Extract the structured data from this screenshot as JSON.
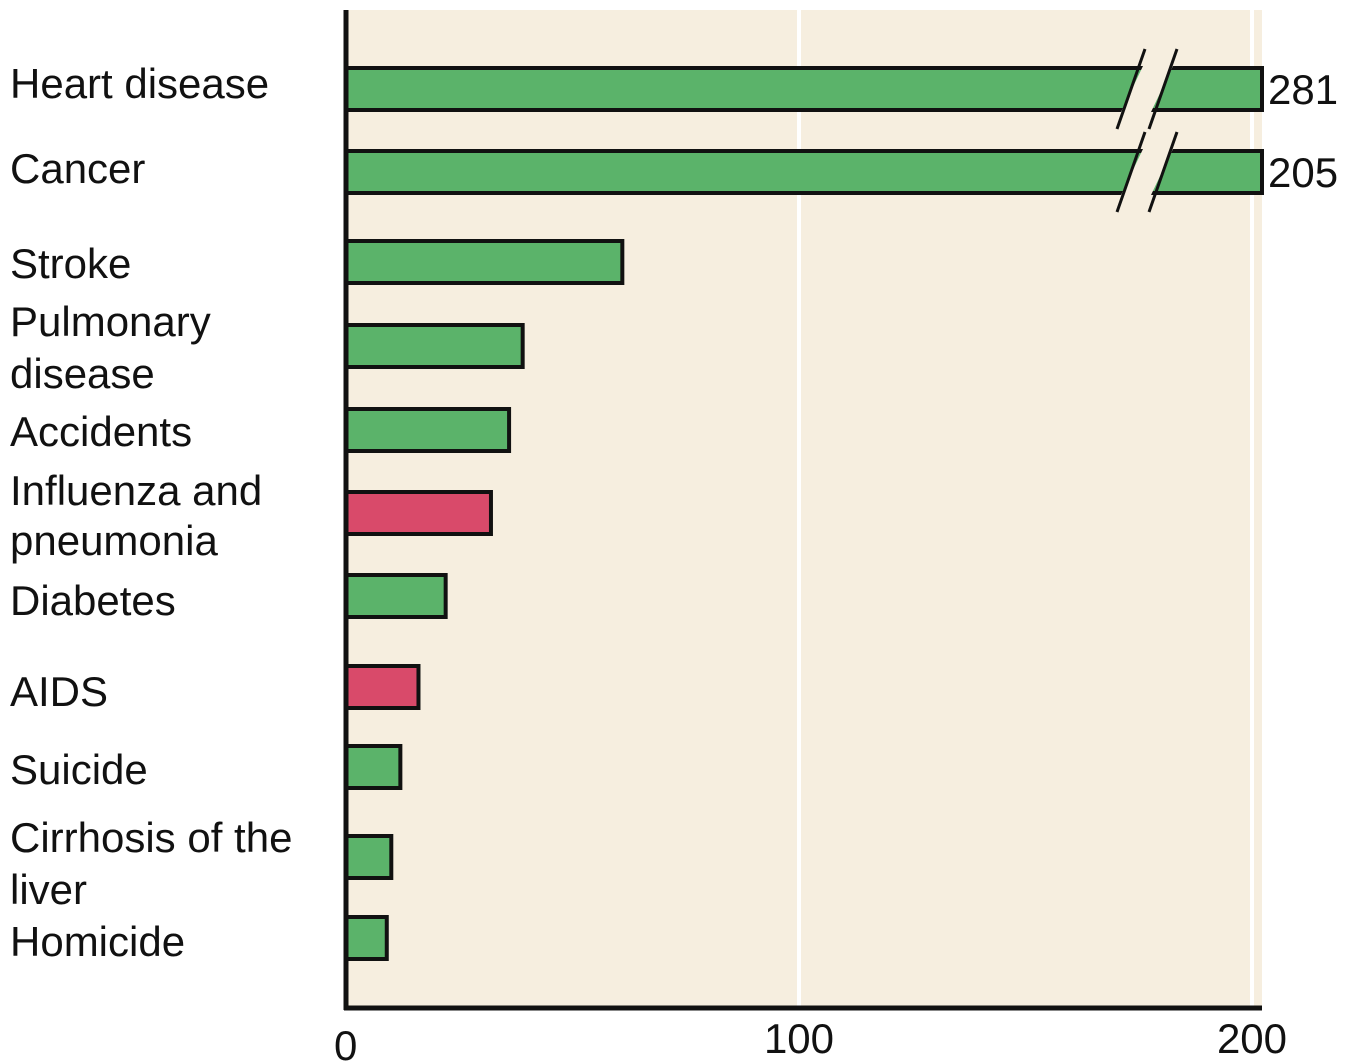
{
  "chart_data": {
    "type": "bar",
    "orientation": "horizontal",
    "categories": [
      [
        "Heart disease"
      ],
      [
        "Cancer"
      ],
      [
        "Stroke"
      ],
      [
        "Pulmonary",
        "disease"
      ],
      [
        "Accidents"
      ],
      [
        "Influenza and",
        "pneumonia"
      ],
      [
        "Diabetes"
      ],
      [
        "AIDS"
      ],
      [
        "Suicide"
      ],
      [
        "Cirrhosis of the",
        "liver"
      ],
      [
        "Homicide"
      ]
    ],
    "values": [
      281,
      205,
      61,
      39,
      36,
      32,
      22,
      16,
      12,
      10,
      9
    ],
    "data_labels": [
      "281",
      "205",
      "",
      "",
      "",
      "",
      "",
      "",
      "",
      "",
      ""
    ],
    "axis_broken": [
      true,
      true,
      false,
      false,
      false,
      false,
      false,
      false,
      false,
      false,
      false
    ],
    "bar_colors": [
      "#5bb36a",
      "#5bb36a",
      "#5bb36a",
      "#5bb36a",
      "#5bb36a",
      "#d94a6a",
      "#5bb36a",
      "#d94a6a",
      "#5bb36a",
      "#5bb36a",
      "#5bb36a"
    ],
    "xticks": [
      "0",
      "100",
      "200"
    ],
    "xtick_values": [
      0,
      100,
      200
    ],
    "xlim": [
      0,
      202
    ],
    "grid": true,
    "background_color": "#f6eedf",
    "grid_color": "#ffffff",
    "title": "",
    "xlabel": "",
    "ylabel": ""
  }
}
